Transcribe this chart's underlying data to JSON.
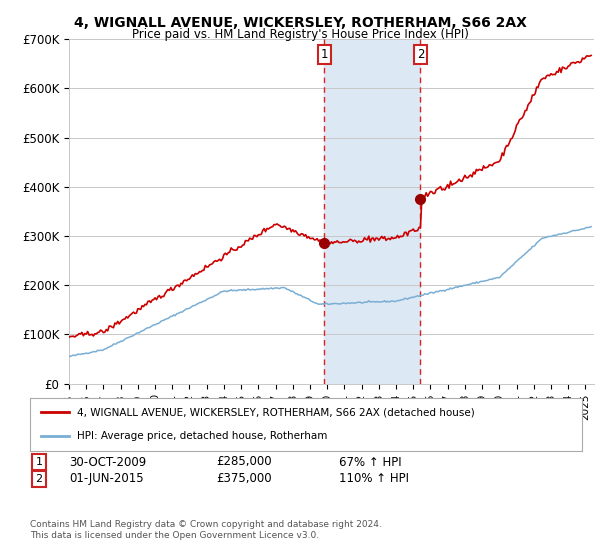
{
  "title": "4, WIGNALL AVENUE, WICKERSLEY, ROTHERHAM, S66 2AX",
  "subtitle": "Price paid vs. HM Land Registry's House Price Index (HPI)",
  "ylim": [
    0,
    700000
  ],
  "yticks": [
    0,
    100000,
    200000,
    300000,
    400000,
    500000,
    600000,
    700000
  ],
  "ytick_labels": [
    "£0",
    "£100K",
    "£200K",
    "£300K",
    "£400K",
    "£500K",
    "£600K",
    "£700K"
  ],
  "sale1_date": 2009.83,
  "sale1_price": 285000,
  "sale2_date": 2015.42,
  "sale2_price": 375000,
  "sale1_text": "30-OCT-2009",
  "sale1_pct": "67%",
  "sale2_text": "01-JUN-2015",
  "sale2_pct": "110%",
  "red_line_color": "#cc0000",
  "blue_line_color": "#7aaed4",
  "shade_color": "#dde8f5",
  "grid_color": "#c8c8c8",
  "legend_label_red": "4, WIGNALL AVENUE, WICKERSLEY, ROTHERHAM, S66 2AX (detached house)",
  "legend_label_blue": "HPI: Average price, detached house, Rotherham",
  "footnote1": "Contains HM Land Registry data © Crown copyright and database right 2024.",
  "footnote2": "This data is licensed under the Open Government Licence v3.0.",
  "bg_color": "#ffffff"
}
